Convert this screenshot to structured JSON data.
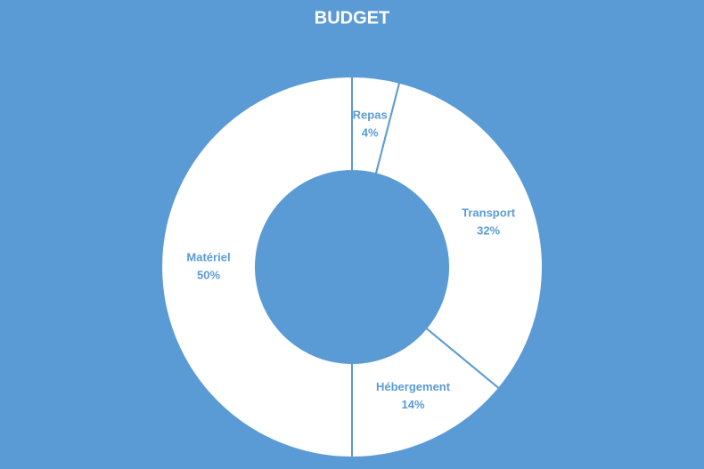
{
  "chart_data": {
    "type": "donut",
    "title": "BUDGET",
    "categories": [
      "Repas",
      "Transport",
      "Hébergement",
      "Matériel"
    ],
    "values": [
      4,
      32,
      14,
      50
    ],
    "value_labels": [
      "4%",
      "32%",
      "14%",
      "50%"
    ],
    "color": "#ffffff",
    "edge_color": "#5b9bd5"
  }
}
